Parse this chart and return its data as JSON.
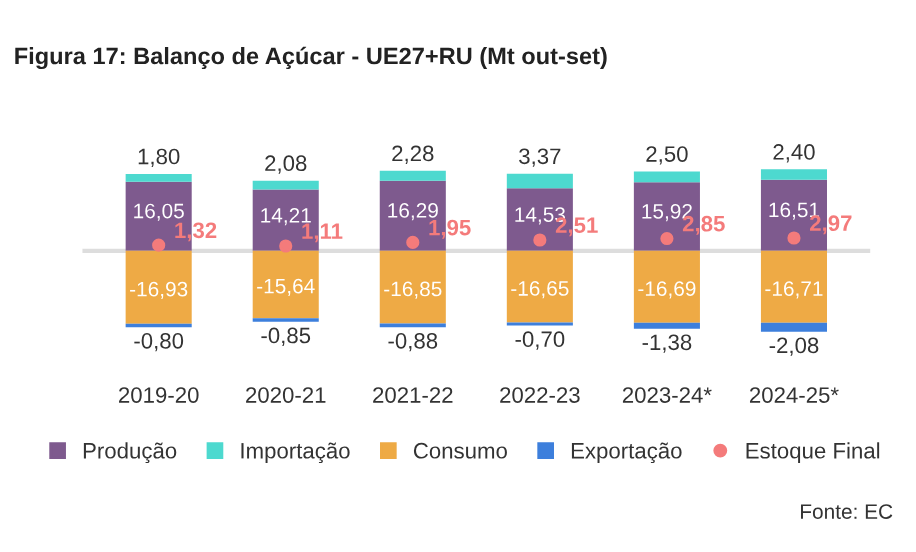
{
  "chart_data": {
    "type": "bar",
    "stacked": true,
    "title": "Figura 17: Balanço de Açúcar - UE27+RU (Mt out-set)",
    "categories": [
      "2019-20",
      "2020-21",
      "2021-22",
      "2022-23",
      "2023-24*",
      "2024-25*"
    ],
    "series": [
      {
        "name": "Produção",
        "color": "#7e5a8e",
        "values": [
          16.05,
          14.21,
          16.29,
          14.53,
          15.92,
          16.51
        ],
        "value_labels": [
          "16,05",
          "14,21",
          "16,29",
          "14,53",
          "15,92",
          "16,51"
        ]
      },
      {
        "name": "Importação",
        "color": "#4dd9cf",
        "values": [
          1.8,
          2.08,
          2.28,
          3.37,
          2.5,
          2.4
        ],
        "value_labels": [
          "1,80",
          "2,08",
          "2,28",
          "3,37",
          "2,50",
          "2,40"
        ]
      },
      {
        "name": "Consumo",
        "color": "#eeaa45",
        "values": [
          -16.93,
          -15.64,
          -16.85,
          -16.65,
          -16.69,
          -16.71
        ],
        "value_labels": [
          "-16,93",
          "-15,64",
          "-16,85",
          "-16,65",
          "-16,69",
          "-16,71"
        ]
      },
      {
        "name": "Exportação",
        "color": "#3d7fdc",
        "values": [
          -0.8,
          -0.85,
          -0.88,
          -0.7,
          -1.38,
          -2.08
        ],
        "value_labels": [
          "-0,80",
          "-0,85",
          "-0,88",
          "-0,70",
          "-1,38",
          "-2,08"
        ]
      },
      {
        "name": "Estoque Final",
        "type": "scatter",
        "marker": "circle",
        "color": "#f47b7b",
        "values": [
          1.32,
          1.11,
          1.95,
          2.51,
          2.85,
          2.97
        ],
        "value_labels": [
          "1,32",
          "1,11",
          "1,95",
          "2,51",
          "2,85",
          "2,97"
        ]
      }
    ],
    "legend": "bottom",
    "grid": false,
    "annotations": [
      "Fonte: EC"
    ]
  }
}
